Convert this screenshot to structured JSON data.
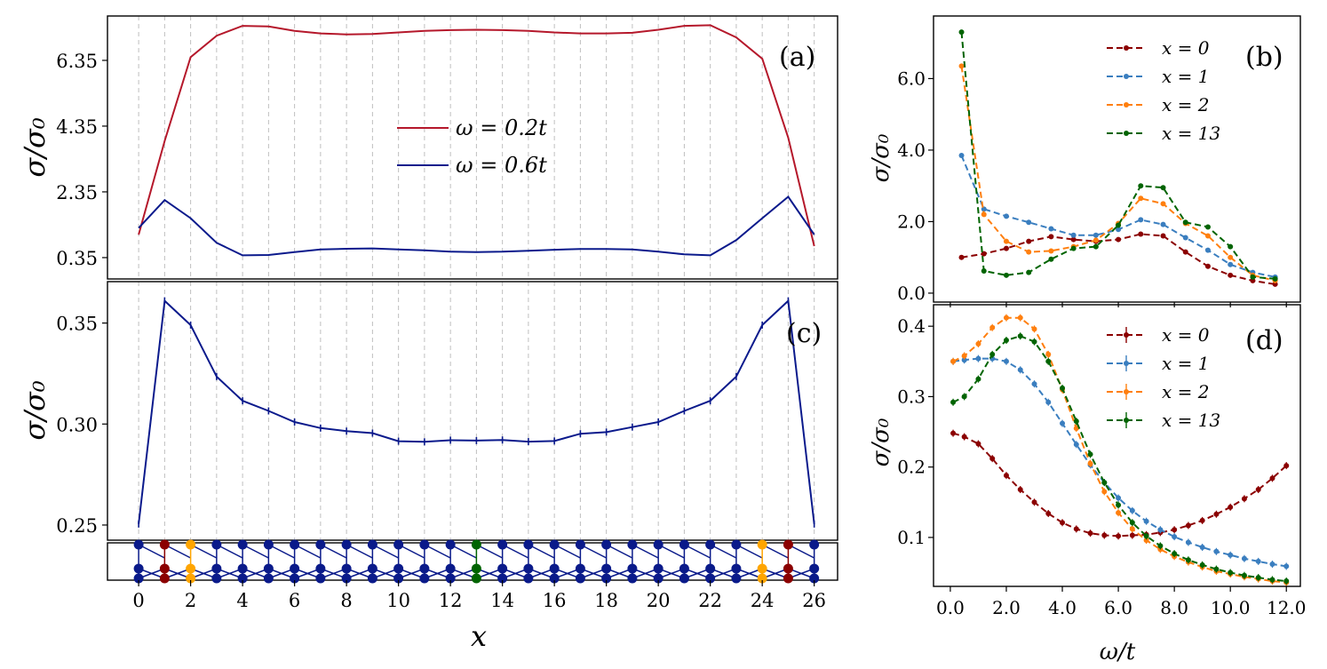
{
  "chart_data": [
    {
      "panel": "(a)",
      "type": "line",
      "xlabel": "x",
      "ylabel": "σ/σ₀",
      "xlim": [
        -1.2,
        26.9
      ],
      "ylim": [
        -0.3,
        7.7
      ],
      "yticks": [
        0.35,
        2.35,
        4.35,
        6.35
      ],
      "ytick_labels": [
        "0.35",
        "2.35",
        "4.35",
        "6.35"
      ],
      "grid": "vertical dashed at integer x",
      "legend": {
        "placement": "center",
        "entries": [
          "ω = 0.2t",
          "ω = 0.6t"
        ]
      },
      "series": [
        {
          "name": "ω = 0.2t",
          "color": "#b5182b",
          "x": [
            0,
            1,
            2,
            3,
            4,
            5,
            6,
            7,
            8,
            9,
            10,
            11,
            12,
            13,
            14,
            15,
            16,
            17,
            18,
            19,
            20,
            21,
            22,
            23,
            24,
            25,
            26
          ],
          "values": [
            1.05,
            3.9,
            6.45,
            7.1,
            7.4,
            7.38,
            7.25,
            7.17,
            7.14,
            7.15,
            7.2,
            7.25,
            7.27,
            7.28,
            7.27,
            7.25,
            7.2,
            7.17,
            7.17,
            7.19,
            7.28,
            7.4,
            7.42,
            7.05,
            6.4,
            4.0,
            0.7
          ]
        },
        {
          "name": "ω = 0.6t",
          "color": "#0b1a8c",
          "x": [
            0,
            1,
            2,
            3,
            4,
            5,
            6,
            7,
            8,
            9,
            10,
            11,
            12,
            13,
            14,
            15,
            16,
            17,
            18,
            19,
            20,
            21,
            22,
            23,
            24,
            25,
            26
          ],
          "values": [
            1.25,
            2.1,
            1.55,
            0.8,
            0.42,
            0.43,
            0.52,
            0.6,
            0.62,
            0.63,
            0.6,
            0.57,
            0.53,
            0.52,
            0.53,
            0.56,
            0.59,
            0.61,
            0.61,
            0.6,
            0.53,
            0.45,
            0.42,
            0.88,
            1.55,
            2.2,
            1.05
          ]
        }
      ]
    },
    {
      "panel": "(c)",
      "type": "line",
      "xlabel": "x",
      "ylabel": "σ/σ₀",
      "xlim": [
        -1.2,
        26.9
      ],
      "ylim": [
        0.2425,
        0.3705
      ],
      "yticks": [
        0.25,
        0.3,
        0.35
      ],
      "ytick_labels": [
        "0.25",
        "0.30",
        "0.35"
      ],
      "xticks": [
        0,
        2,
        4,
        6,
        8,
        10,
        12,
        14,
        16,
        18,
        20,
        22,
        24,
        26
      ],
      "xtick_labels": [
        "0",
        "2",
        "4",
        "6",
        "8",
        "10",
        "12",
        "14",
        "16",
        "18",
        "20",
        "22",
        "24",
        "26"
      ],
      "series": [
        {
          "name": "ω = 0.6t",
          "color": "#0b1a8c",
          "x": [
            0,
            1,
            2,
            3,
            4,
            5,
            6,
            7,
            8,
            9,
            10,
            11,
            12,
            13,
            14,
            15,
            16,
            17,
            18,
            19,
            20,
            21,
            22,
            23,
            24,
            25,
            26
          ],
          "values": [
            0.2505,
            0.361,
            0.349,
            0.3235,
            0.3115,
            0.3065,
            0.301,
            0.298,
            0.2965,
            0.2955,
            0.2915,
            0.2912,
            0.292,
            0.2918,
            0.2921,
            0.2913,
            0.2916,
            0.2952,
            0.296,
            0.2985,
            0.301,
            0.3065,
            0.3115,
            0.3235,
            0.349,
            0.361,
            0.2505
          ]
        }
      ]
    },
    {
      "panel": "(b)",
      "type": "line",
      "xlabel": "ω/t",
      "ylabel": "σ/σ₀",
      "xlim": [
        -0.6,
        12.5
      ],
      "ylim": [
        -0.25,
        7.75
      ],
      "yticks": [
        0.0,
        2.0,
        4.0,
        6.0
      ],
      "ytick_labels": [
        "0.0",
        "2.0",
        "4.0",
        "6.0"
      ],
      "legend": {
        "placement": "top-right",
        "entries": [
          "x = 0",
          "x = 1",
          "x = 2",
          "x = 13"
        ]
      },
      "series": [
        {
          "name": "x = 0",
          "color": "#8b0000",
          "x": [
            0.4,
            1.2,
            2.0,
            2.8,
            3.6,
            4.4,
            5.2,
            6.0,
            6.8,
            7.6,
            8.4,
            9.2,
            10.0,
            10.8,
            11.6
          ],
          "values": [
            1.0,
            1.1,
            1.25,
            1.45,
            1.58,
            1.5,
            1.45,
            1.5,
            1.65,
            1.6,
            1.15,
            0.75,
            0.5,
            0.35,
            0.25
          ]
        },
        {
          "name": "x = 1",
          "color": "#3a7ebf",
          "x": [
            0.4,
            1.2,
            2.0,
            2.8,
            3.6,
            4.4,
            5.2,
            6.0,
            6.8,
            7.6,
            8.4,
            9.2,
            10.0,
            10.8,
            11.6
          ],
          "values": [
            3.85,
            2.35,
            2.15,
            1.98,
            1.8,
            1.62,
            1.62,
            1.78,
            2.05,
            1.92,
            1.55,
            1.2,
            0.8,
            0.58,
            0.45
          ]
        },
        {
          "name": "x = 2",
          "color": "#ff7f0e",
          "x": [
            0.4,
            1.2,
            2.0,
            2.8,
            3.6,
            4.4,
            5.2,
            6.0,
            6.8,
            7.6,
            8.4,
            9.2,
            10.0,
            10.8,
            11.6
          ],
          "values": [
            6.35,
            2.2,
            1.45,
            1.15,
            1.18,
            1.3,
            1.48,
            1.95,
            2.65,
            2.5,
            1.95,
            1.6,
            1.0,
            0.5,
            0.35
          ]
        },
        {
          "name": "x = 13",
          "color": "#006400",
          "x": [
            0.4,
            1.2,
            2.0,
            2.8,
            3.6,
            4.4,
            5.2,
            6.0,
            6.8,
            7.6,
            8.4,
            9.2,
            10.0,
            10.8,
            11.6
          ],
          "values": [
            7.3,
            0.62,
            0.5,
            0.58,
            0.95,
            1.25,
            1.3,
            1.9,
            3.0,
            2.95,
            1.98,
            1.85,
            1.3,
            0.45,
            0.4
          ]
        }
      ]
    },
    {
      "panel": "(d)",
      "type": "line",
      "xlabel": "ω/t",
      "ylabel": "σ/σ₀",
      "xlim": [
        -0.6,
        12.5
      ],
      "ylim": [
        0.0305,
        0.4305
      ],
      "yticks": [
        0.1,
        0.2,
        0.3,
        0.4
      ],
      "ytick_labels": [
        "0.1",
        "0.2",
        "0.3",
        "0.4"
      ],
      "xticks": [
        0.0,
        2.0,
        4.0,
        6.0,
        8.0,
        10.0,
        12.0
      ],
      "xtick_labels": [
        "0.0",
        "2.0",
        "4.0",
        "6.0",
        "8.0",
        "10.0",
        "12.0"
      ],
      "legend": {
        "placement": "top-right",
        "entries": [
          "x = 0",
          "x = 1",
          "x = 2",
          "x = 13"
        ]
      },
      "series": [
        {
          "name": "x = 0",
          "color": "#8b0000",
          "x": [
            0.1,
            0.5,
            1.0,
            1.5,
            2.0,
            2.5,
            3.0,
            3.5,
            4.0,
            4.5,
            5.0,
            5.5,
            6.0,
            6.5,
            7.0,
            7.5,
            8.0,
            8.5,
            9.0,
            9.5,
            10.0,
            10.5,
            11.0,
            11.5,
            12.0
          ],
          "values": [
            0.248,
            0.243,
            0.233,
            0.212,
            0.188,
            0.168,
            0.15,
            0.134,
            0.121,
            0.112,
            0.106,
            0.103,
            0.102,
            0.103,
            0.104,
            0.107,
            0.111,
            0.117,
            0.124,
            0.133,
            0.143,
            0.155,
            0.168,
            0.184,
            0.202
          ]
        },
        {
          "name": "x = 1",
          "color": "#3a7ebf",
          "x": [
            0.1,
            0.5,
            1.0,
            1.5,
            2.0,
            2.5,
            3.0,
            3.5,
            4.0,
            4.5,
            5.0,
            5.5,
            6.0,
            6.5,
            7.0,
            7.5,
            8.0,
            8.5,
            9.0,
            9.5,
            10.0,
            10.5,
            11.0,
            11.5,
            12.0
          ],
          "values": [
            0.35,
            0.352,
            0.354,
            0.354,
            0.35,
            0.338,
            0.318,
            0.292,
            0.262,
            0.232,
            0.203,
            0.178,
            0.156,
            0.138,
            0.123,
            0.111,
            0.101,
            0.093,
            0.086,
            0.08,
            0.075,
            0.07,
            0.066,
            0.062,
            0.059
          ]
        },
        {
          "name": "x = 2",
          "color": "#ff7f0e",
          "x": [
            0.1,
            0.5,
            1.0,
            1.5,
            2.0,
            2.5,
            3.0,
            3.5,
            4.0,
            4.5,
            5.0,
            5.5,
            6.0,
            6.5,
            7.0,
            7.5,
            8.0,
            8.5,
            9.0,
            9.5,
            10.0,
            10.5,
            11.0,
            11.5,
            12.0
          ],
          "values": [
            0.35,
            0.358,
            0.375,
            0.398,
            0.412,
            0.412,
            0.396,
            0.36,
            0.31,
            0.255,
            0.205,
            0.165,
            0.135,
            0.112,
            0.096,
            0.083,
            0.073,
            0.065,
            0.058,
            0.052,
            0.048,
            0.044,
            0.041,
            0.038,
            0.036
          ]
        },
        {
          "name": "x = 13",
          "color": "#006400",
          "x": [
            0.1,
            0.5,
            1.0,
            1.5,
            2.0,
            2.5,
            3.0,
            3.5,
            4.0,
            4.5,
            5.0,
            5.5,
            6.0,
            6.5,
            7.0,
            7.5,
            8.0,
            8.5,
            9.0,
            9.5,
            10.0,
            10.5,
            11.0,
            11.5,
            12.0
          ],
          "values": [
            0.292,
            0.3,
            0.325,
            0.36,
            0.38,
            0.386,
            0.378,
            0.35,
            0.312,
            0.265,
            0.218,
            0.178,
            0.146,
            0.121,
            0.102,
            0.088,
            0.077,
            0.068,
            0.061,
            0.055,
            0.05,
            0.046,
            0.043,
            0.04,
            0.038
          ]
        }
      ]
    }
  ],
  "lattice_strip": {
    "columns": 27,
    "site_colors": {
      "default": "#0a1a8a",
      "edge": "#8b0000",
      "near_edge": "#ffa500",
      "center": "#006400"
    },
    "highlight_columns": {
      "edge": [
        1,
        25
      ],
      "near_edge": [
        2,
        24
      ],
      "center": [
        13
      ]
    }
  }
}
